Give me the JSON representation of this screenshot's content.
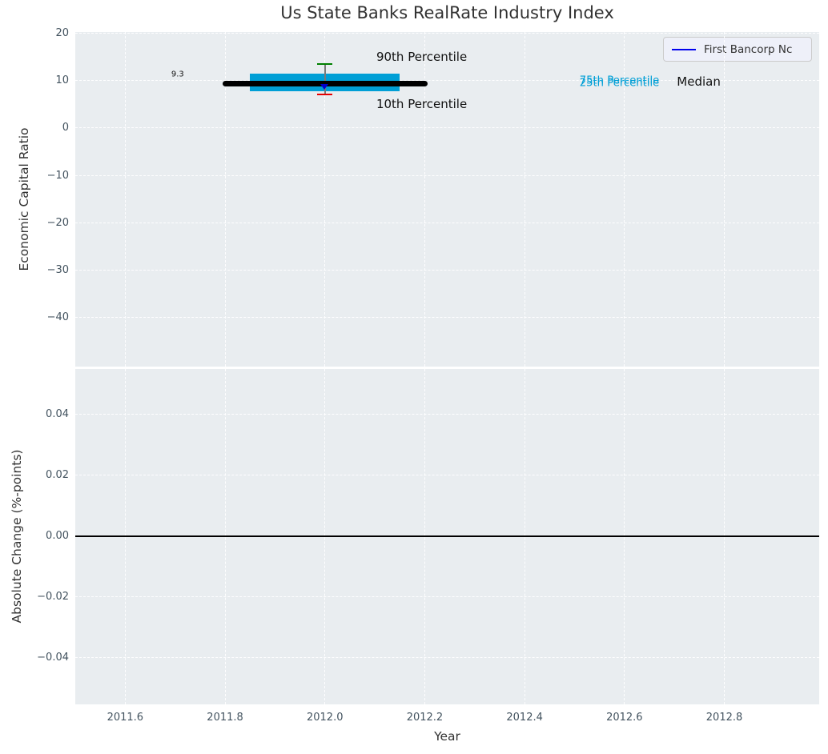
{
  "figure": {
    "title": "Us State Banks RealRate Industry Index",
    "xlabel": "Year"
  },
  "legend": {
    "label": "First Bancorp Nc"
  },
  "colors": {
    "plot_bg": "#e9edf0",
    "grid": "#ffffff",
    "tick_label": "#43535f",
    "title_text": "#323232",
    "iqr_bar_cyan": "#009fd6",
    "median_black": "#000000",
    "legend_line_blue": "#0000ee",
    "marker_blue": "#0000cc",
    "cap_90_green": "#008000",
    "cap_10_red": "#e60000",
    "errorbar_gray": "#7a7a7a",
    "annotation_text": "#111111"
  },
  "chart_data": [
    {
      "type": "errorbar",
      "title": "Us State Banks RealRate Industry Index",
      "ylabel": "Economic Capital Ratio",
      "xlim": [
        2011.5,
        2012.99
      ],
      "ylim": [
        -50.35,
        20.25
      ],
      "grid": true,
      "legend_position": "upper right",
      "xticks": [
        2011.6,
        2011.8,
        2012.0,
        2012.2,
        2012.4,
        2012.6,
        2012.8
      ],
      "show_xtick_labels": false,
      "yticks": [
        20,
        10,
        0,
        -10,
        -20,
        -30,
        -40
      ],
      "ytick_labels": [
        "20",
        "10",
        "0",
        "−10",
        "−20",
        "−30",
        "−40"
      ],
      "series": [
        {
          "name": "First Bancorp Nc",
          "x": 2012.0,
          "median": 9.3,
          "median_label": "9.3",
          "p10": 7.1,
          "p25": 7.8,
          "p75": 11.5,
          "p90": 13.5,
          "median_span": [
            2011.8,
            2012.2
          ],
          "iqr_span": [
            2011.85,
            2012.15
          ]
        }
      ],
      "annotations": [
        {
          "text": "9.3",
          "x": 2011.705,
          "y": 11.25,
          "color": "#111111",
          "size": 10,
          "anchor": "center"
        },
        {
          "text": "90th Percentile",
          "x": 2012.103,
          "y": 14.93,
          "color": "#111111",
          "size": 15,
          "anchor": "left"
        },
        {
          "text": "10th Percentile",
          "x": 2012.103,
          "y": 5.1,
          "color": "#111111",
          "size": 15,
          "anchor": "left"
        },
        {
          "text": "75th Percentile",
          "x": 2012.51,
          "y": 9.95,
          "color": "#009fd6",
          "size": 13.2,
          "anchor": "left"
        },
        {
          "text": "25th Percentile",
          "x": 2012.51,
          "y": 9.45,
          "color": "#009fd6",
          "size": 13.2,
          "anchor": "left"
        },
        {
          "text": "Median",
          "x": 2012.705,
          "y": 9.78,
          "color": "#111111",
          "size": 15,
          "anchor": "left"
        }
      ]
    },
    {
      "type": "line",
      "ylabel": "Absolute Change (%-points)",
      "xlabel": "Year",
      "xlim": [
        2011.5,
        2012.99
      ],
      "ylim": [
        -0.0553,
        0.055
      ],
      "grid": true,
      "xticks": [
        2011.6,
        2011.8,
        2012.0,
        2012.2,
        2012.4,
        2012.6,
        2012.8
      ],
      "xtick_labels": [
        "2011.6",
        "2011.8",
        "2012.0",
        "2012.2",
        "2012.4",
        "2012.6",
        "2012.8"
      ],
      "show_xtick_labels": true,
      "yticks": [
        0.04,
        0.02,
        0.0,
        -0.02,
        -0.04
      ],
      "ytick_labels": [
        "0.04",
        "0.02",
        "0.00",
        "−0.02",
        "−0.04"
      ],
      "zero_line_y": 0.0,
      "series": []
    }
  ]
}
